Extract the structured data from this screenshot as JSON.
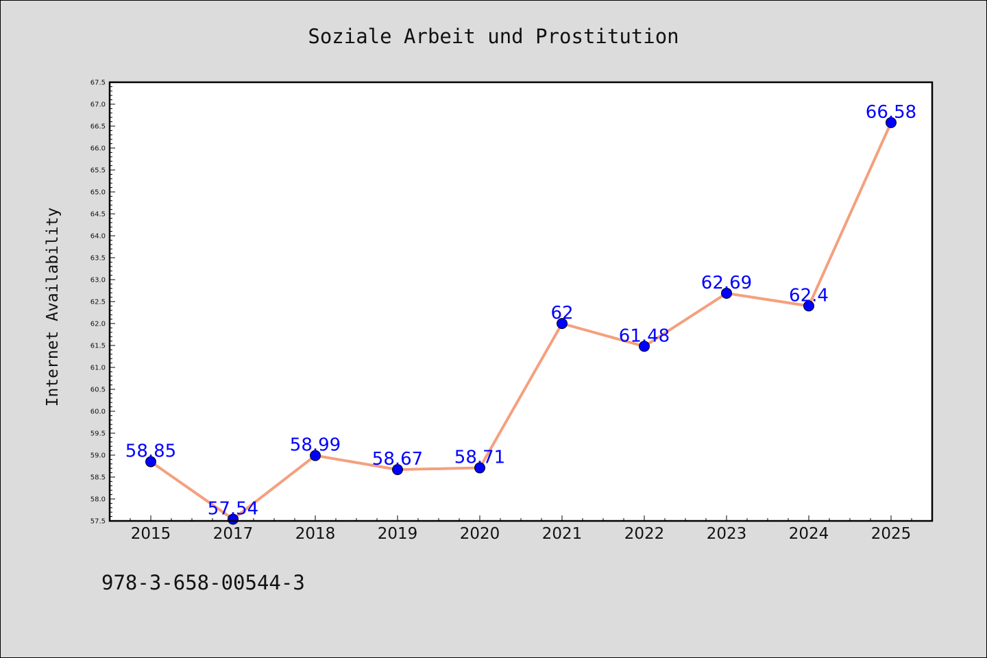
{
  "chart_data": {
    "type": "line",
    "title": "Soziale Arbeit und Prostitution",
    "xlabel": "",
    "ylabel": "Internet Availability",
    "categories": [
      "2015",
      "2017",
      "2018",
      "2019",
      "2020",
      "2021",
      "2022",
      "2023",
      "2024",
      "2025"
    ],
    "series": [
      {
        "values": [
          58.85,
          57.54,
          58.99,
          58.67,
          58.71,
          62,
          61.48,
          62.69,
          62.4,
          66.58
        ],
        "labels": [
          "58.85",
          "57.54",
          "58.99",
          "58.67",
          "58.71",
          "62",
          "61.48",
          "62.69",
          "62.4",
          "66.58"
        ],
        "line_color": "#f4a07e",
        "marker_color": "#0000ff"
      }
    ],
    "ylim": [
      57.5,
      67.5
    ],
    "ytick_step": 0.5,
    "grid": false,
    "legend": "none"
  },
  "footer": {
    "isbn": "978-3-658-00544-3"
  }
}
